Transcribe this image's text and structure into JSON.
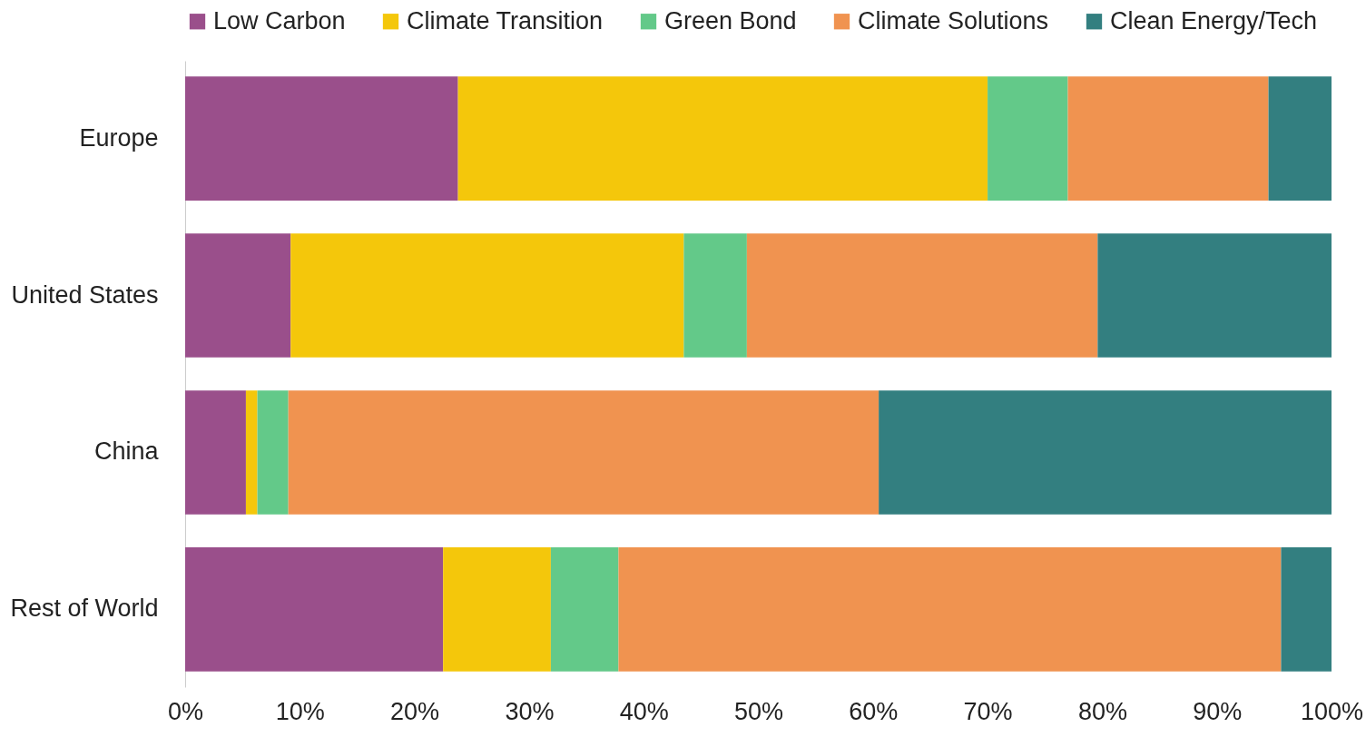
{
  "chart_data": {
    "type": "bar",
    "orientation": "horizontal",
    "stacked": true,
    "legend": "top",
    "grid": false,
    "categories": [
      "Europe",
      "United States",
      "China",
      "Rest of World"
    ],
    "series": [
      {
        "name": "Low Carbon",
        "color": "#9a4f8b",
        "values": [
          23.8,
          9.2,
          5.3,
          22.5
        ]
      },
      {
        "name": "Climate Transition",
        "color": "#f4c70b",
        "values": [
          46.2,
          34.3,
          1.0,
          9.4
        ]
      },
      {
        "name": "Green Bond",
        "color": "#63c989",
        "values": [
          7.0,
          5.5,
          2.7,
          5.9
        ]
      },
      {
        "name": "Climate Solutions",
        "color": "#f09350",
        "values": [
          17.5,
          30.6,
          51.5,
          57.8
        ]
      },
      {
        "name": "Clean Energy/Tech",
        "color": "#337f80",
        "values": [
          5.5,
          20.4,
          39.5,
          4.4
        ]
      }
    ],
    "xlim": [
      0,
      100
    ],
    "xticks": [
      {
        "value": 0,
        "label": "0%"
      },
      {
        "value": 10,
        "label": "10%"
      },
      {
        "value": 20,
        "label": "20%"
      },
      {
        "value": 30,
        "label": "30%"
      },
      {
        "value": 40,
        "label": "40%"
      },
      {
        "value": 50,
        "label": "50%"
      },
      {
        "value": 60,
        "label": "60%"
      },
      {
        "value": 70,
        "label": "70%"
      },
      {
        "value": 80,
        "label": "80%"
      },
      {
        "value": 90,
        "label": "90%"
      },
      {
        "value": 100,
        "label": "100%"
      }
    ]
  }
}
